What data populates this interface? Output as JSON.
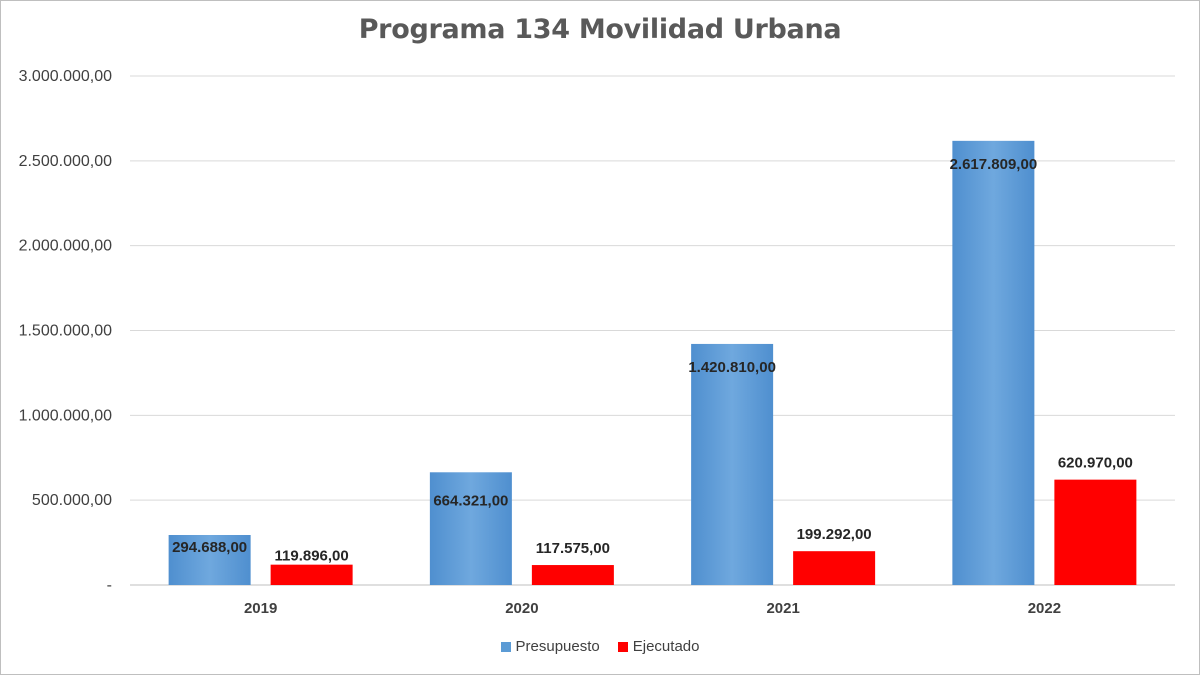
{
  "chart_data": {
    "type": "bar",
    "title": "Programa 134 Movilidad Urbana",
    "categories": [
      "2019",
      "2020",
      "2021",
      "2022"
    ],
    "series": [
      {
        "name": "Presupuesto",
        "color": "#5b9bd5",
        "values": [
          294688,
          664321,
          1420810,
          2617809
        ],
        "labels": [
          "294.688,00",
          "664.321,00",
          "1.420.810,00",
          "2.617.809,00"
        ]
      },
      {
        "name": "Ejecutado",
        "color": "#ff0000",
        "values": [
          119896,
          117575,
          199292,
          620970
        ],
        "labels": [
          "119.896,00",
          "117.575,00",
          "199.292,00",
          "620.970,00"
        ]
      }
    ],
    "y_ticks": [
      {
        "value": 0,
        "label": "-"
      },
      {
        "value": 500000,
        "label": "500.000,00"
      },
      {
        "value": 1000000,
        "label": "1.000.000,00"
      },
      {
        "value": 1500000,
        "label": "1.500.000,00"
      },
      {
        "value": 2000000,
        "label": "2.000.000,00"
      },
      {
        "value": 2500000,
        "label": "2.500.000,00"
      },
      {
        "value": 3000000,
        "label": "3.000.000,00"
      }
    ],
    "ylim": [
      0,
      3000000
    ],
    "xlabel": "",
    "ylabel": "",
    "grid": true,
    "legend_position": "bottom"
  }
}
